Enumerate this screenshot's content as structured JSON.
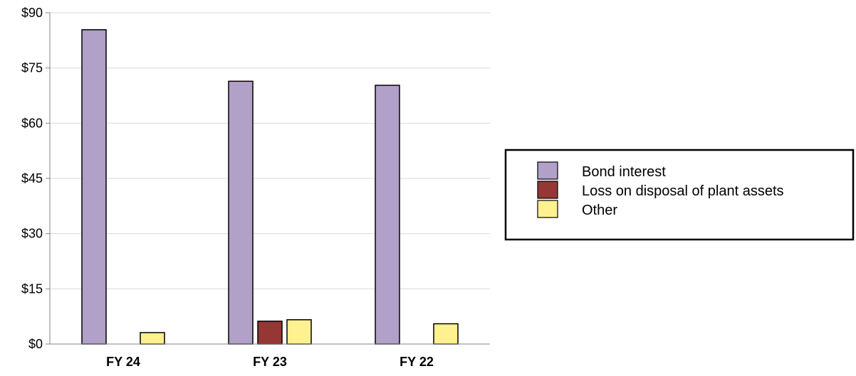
{
  "chart_data": {
    "type": "bar",
    "title": "",
    "xlabel": "",
    "ylabel": "",
    "categories": [
      "FY 24",
      "FY 23",
      "FY 22"
    ],
    "series": [
      {
        "name": "Bond interest",
        "values": [
          85.4,
          71.4,
          70.3
        ],
        "color": "#B1A0C7"
      },
      {
        "name": "Loss on disposal of plant assets",
        "values": [
          0,
          6.2,
          0
        ],
        "color": "#953735"
      },
      {
        "name": "Other",
        "values": [
          3.1,
          6.6,
          5.5
        ],
        "color": "#FFF18F"
      }
    ],
    "ylim": [
      0,
      90
    ],
    "yticks": [
      0,
      15,
      30,
      45,
      60,
      75,
      90
    ],
    "ytick_labels": [
      "$0",
      "$15",
      "$30",
      "$45",
      "$60",
      "$75",
      "$90"
    ],
    "grid": true,
    "legend_position": "right"
  }
}
